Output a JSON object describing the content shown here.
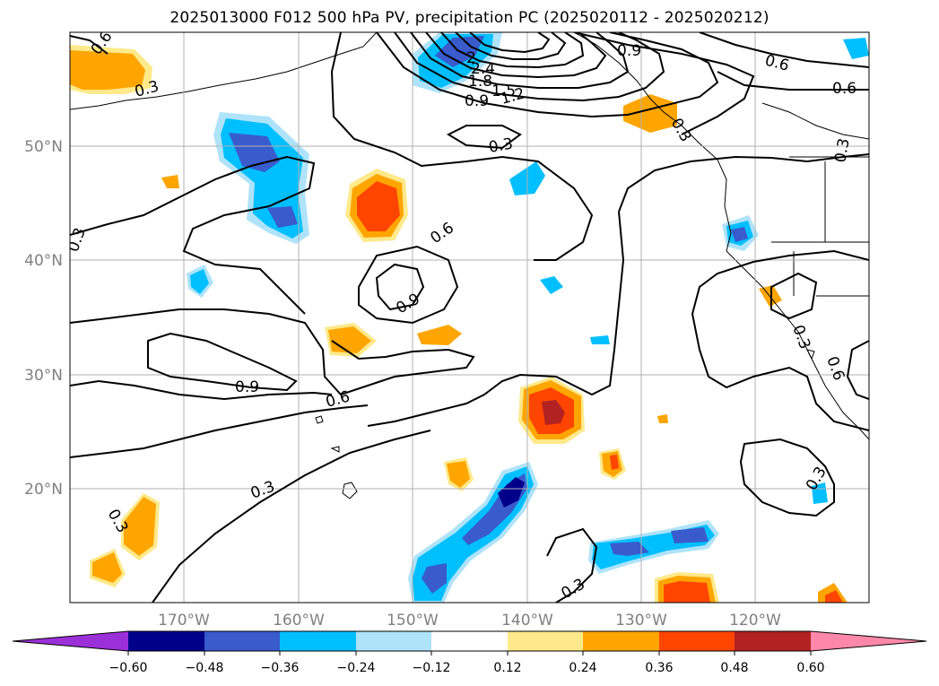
{
  "title": "2025013000 F012 500 hPa PV, precipitation PC (2025020112 - 2025020212)",
  "map": {
    "lat_labels": [
      "50°N",
      "40°N",
      "30°N",
      "20°N"
    ],
    "lon_labels": [
      "170°W",
      "160°W",
      "150°W",
      "140°W",
      "130°W",
      "120°W"
    ],
    "contour_labels": [
      "0.6",
      "0.3",
      "2",
      "2.4",
      "1.8",
      "1.5",
      "1.2",
      "0.9",
      "0.9",
      "0.6",
      "0.6",
      "0.3",
      "0.3",
      "0.6",
      "0.9",
      "0.3",
      "0.9",
      "0.6",
      "0.3",
      "0.3",
      "0.3",
      "0.3",
      "0.3",
      "0.6",
      "0.3"
    ]
  },
  "colorbar": {
    "ticks": [
      "−0.60",
      "−0.48",
      "−0.36",
      "−0.24",
      "−0.12",
      "0.12",
      "0.24",
      "0.36",
      "0.48",
      "0.60"
    ],
    "colors": {
      "under": "#9b30d9",
      "b1": "#00008b",
      "b2": "#3a5bcc",
      "b3": "#00bfff",
      "b4": "#aee3fa",
      "b5": "#ffffff",
      "b6": "#ffe98a",
      "b7": "#ffa500",
      "b8": "#ff4500",
      "b9": "#b22222",
      "over": "#ff88aa"
    }
  }
}
